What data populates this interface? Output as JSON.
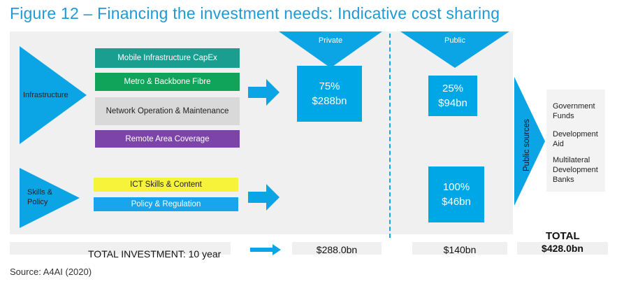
{
  "title": "Figure 12 – Financing the investment needs: Indicative cost sharing",
  "left_groups": [
    {
      "label": "Infrastructure"
    },
    {
      "label": "Skills & Policy"
    }
  ],
  "infra_bars": [
    {
      "label": "Mobile Infrastructure CapEx",
      "color": "#1a9e8f"
    },
    {
      "label": "Metro & Backbone Fibre",
      "color": "#10a35a"
    },
    {
      "label": "Network Operation & Maintenance",
      "color": "#d9d9d9"
    },
    {
      "label": "Remote Area Coverage",
      "color": "#7c44a8"
    }
  ],
  "skills_bars": [
    {
      "label": "ICT Skills & Content",
      "color": "#f6f33a"
    },
    {
      "label": "Policy & Regulation",
      "color": "#19a4ee"
    }
  ],
  "headers": {
    "private": "Private",
    "public": "Public"
  },
  "boxes": {
    "private_infra": {
      "pct": "75%",
      "amount": "$288bn"
    },
    "public_infra": {
      "pct": "25%",
      "amount": "$94bn"
    },
    "public_skills": {
      "pct": "100%",
      "amount": "$46bn"
    }
  },
  "public_sources": {
    "label": "Public sources",
    "items": [
      "Government Funds",
      "Development Aid",
      "Multilateral Development Banks"
    ]
  },
  "totals": {
    "total_label": "TOTAL",
    "investment_label": "TOTAL INVESTMENT: 10 year",
    "private": "$288.0bn",
    "public": "$140bn",
    "total": "$428.0bn"
  },
  "source": "Source: A4AI (2020)",
  "colors": {
    "accent": "#1e9ad6",
    "box": "#00a7e6",
    "arrow": "#0ba4e4"
  }
}
